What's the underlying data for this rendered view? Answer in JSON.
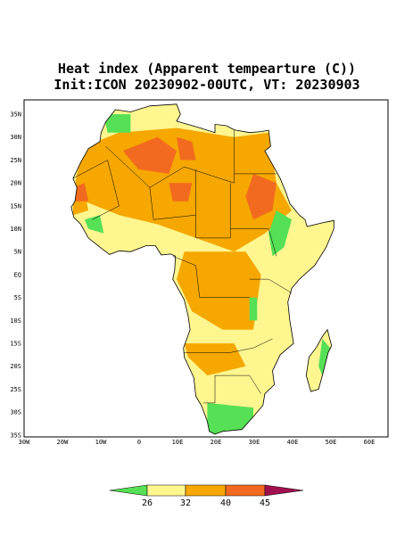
{
  "title": [
    "Heat index (Apparent tempearture (C))",
    "Init:ICON 20230902-00UTC, VT: 20230903"
  ],
  "lat_labels": [
    "35N",
    "30N",
    "25N",
    "20N",
    "15N",
    "10N",
    "5N",
    "EQ",
    "5S",
    "10S",
    "15S",
    "20S",
    "25S",
    "30S",
    "35S"
  ],
  "lon_labels": [
    "30W",
    "20W",
    "10W",
    "0",
    "10E",
    "20E",
    "30E",
    "40E",
    "50E",
    "60E"
  ],
  "colorbar": {
    "labels": [
      "26",
      "32",
      "40",
      "45"
    ]
  }
}
